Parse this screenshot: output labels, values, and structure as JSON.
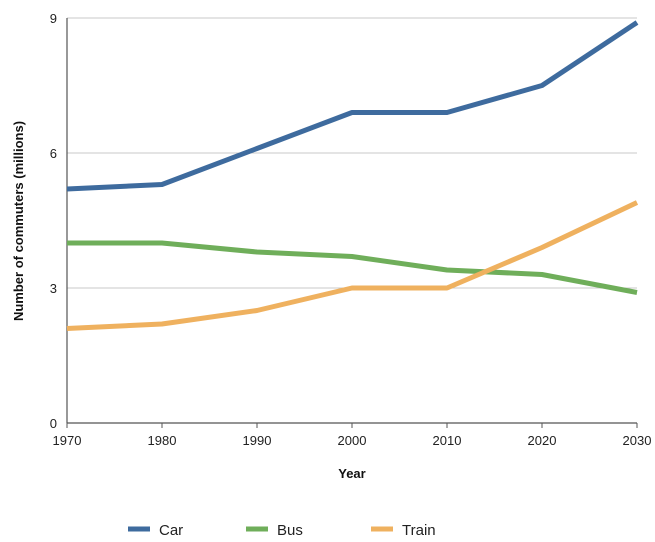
{
  "chart_data": {
    "type": "line",
    "title": "",
    "xlabel": "Year",
    "ylabel": "Number of commuters (millions)",
    "x": [
      1970,
      1980,
      1990,
      2000,
      2010,
      2020,
      2030
    ],
    "xlim": [
      1970,
      2030
    ],
    "ylim": [
      0,
      9
    ],
    "y_ticks": [
      0,
      3,
      6,
      9
    ],
    "grid": "horizontal",
    "legend_position": "bottom",
    "series": [
      {
        "name": "Car",
        "color": "#3e6b9e",
        "values": [
          5.2,
          5.3,
          6.1,
          6.9,
          6.9,
          7.5,
          8.9
        ]
      },
      {
        "name": "Bus",
        "color": "#6fae5a",
        "values": [
          4.0,
          4.0,
          3.8,
          3.7,
          3.4,
          3.3,
          2.9
        ]
      },
      {
        "name": "Train",
        "color": "#efb15f",
        "values": [
          2.1,
          2.2,
          2.5,
          3.0,
          3.0,
          3.9,
          4.9
        ]
      }
    ]
  }
}
